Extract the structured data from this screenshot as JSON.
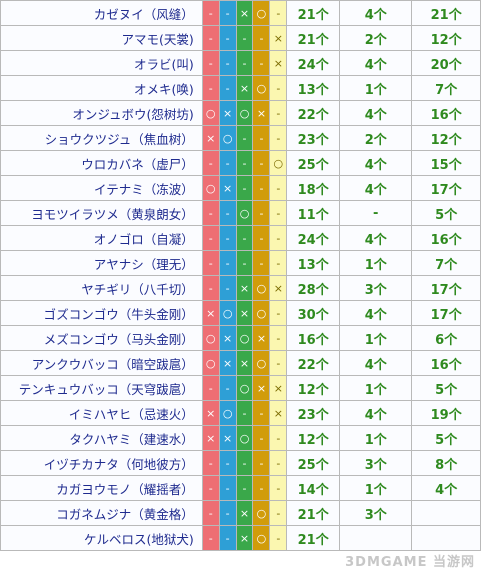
{
  "rows": [
    {
      "name": "カゼヌイ（风缝）",
      "marks": [
        "-",
        "-",
        "×",
        "○",
        "-"
      ],
      "n1": "21个",
      "n2": "4个",
      "n3": "21个"
    },
    {
      "name": "アマモ(天裳)",
      "marks": [
        "-",
        "-",
        "-",
        "-",
        "×"
      ],
      "n1": "21个",
      "n2": "2个",
      "n3": "12个"
    },
    {
      "name": "オラビ(叫)",
      "marks": [
        "-",
        "-",
        "-",
        "-",
        "×"
      ],
      "n1": "24个",
      "n2": "4个",
      "n3": "20个"
    },
    {
      "name": "オメキ(唤)",
      "marks": [
        "-",
        "-",
        "×",
        "○",
        "-"
      ],
      "n1": "13个",
      "n2": "1个",
      "n3": "7个"
    },
    {
      "name": "オンジュボウ(怨树坊)",
      "marks": [
        "○",
        "×",
        "○",
        "×",
        "-"
      ],
      "n1": "22个",
      "n2": "4个",
      "n3": "16个"
    },
    {
      "name": "ショウクツジュ（焦血树）",
      "marks": [
        "×",
        "○",
        "-",
        "-",
        "-"
      ],
      "n1": "23个",
      "n2": "2个",
      "n3": "12个"
    },
    {
      "name": "ウロカバネ（虚尸）",
      "marks": [
        "-",
        "-",
        "-",
        "-",
        "○"
      ],
      "n1": "25个",
      "n2": "4个",
      "n3": "15个"
    },
    {
      "name": "イテナミ（冻波）",
      "marks": [
        "○",
        "×",
        "-",
        "-",
        "-"
      ],
      "n1": "18个",
      "n2": "4个",
      "n3": "17个"
    },
    {
      "name": "ヨモツイラツメ（黄泉朗女）",
      "marks": [
        "-",
        "-",
        "○",
        "-",
        "-"
      ],
      "n1": "11个",
      "n2": "-",
      "n3": "5个"
    },
    {
      "name": "オノゴロ（自凝）",
      "marks": [
        "-",
        "-",
        "-",
        "-",
        "-"
      ],
      "n1": "24个",
      "n2": "4个",
      "n3": "16个"
    },
    {
      "name": "アヤナシ（理无）",
      "marks": [
        "-",
        "-",
        "-",
        "-",
        "-"
      ],
      "n1": "13个",
      "n2": "1个",
      "n3": "7个"
    },
    {
      "name": "ヤチギリ（八千切）",
      "marks": [
        "-",
        "-",
        "×",
        "○",
        "×"
      ],
      "n1": "28个",
      "n2": "3个",
      "n3": "17个"
    },
    {
      "name": "ゴズコンゴウ（牛头金刚）",
      "marks": [
        "×",
        "○",
        "×",
        "○",
        "-"
      ],
      "n1": "30个",
      "n2": "4个",
      "n3": "17个"
    },
    {
      "name": "メズコンゴウ（马头金刚）",
      "marks": [
        "○",
        "×",
        "○",
        "×",
        "-"
      ],
      "n1": "16个",
      "n2": "1个",
      "n3": "6个"
    },
    {
      "name": "アンクウバッコ（暗空跋扈）",
      "marks": [
        "○",
        "×",
        "×",
        "○",
        "-"
      ],
      "n1": "22个",
      "n2": "4个",
      "n3": "16个"
    },
    {
      "name": "テンキュウバッコ（天穹跋扈）",
      "marks": [
        "-",
        "-",
        "○",
        "×",
        "×"
      ],
      "n1": "12个",
      "n2": "1个",
      "n3": "5个"
    },
    {
      "name": "イミハヤヒ（忌速火）",
      "marks": [
        "×",
        "○",
        "-",
        "-",
        "×"
      ],
      "n1": "23个",
      "n2": "4个",
      "n3": "19个"
    },
    {
      "name": "タクハヤミ（建速水）",
      "marks": [
        "×",
        "×",
        "○",
        "-",
        "-"
      ],
      "n1": "12个",
      "n2": "1个",
      "n3": "5个"
    },
    {
      "name": "イヅチカナタ（何地彼方）",
      "marks": [
        "-",
        "-",
        "-",
        "-",
        "-"
      ],
      "n1": "25个",
      "n2": "3个",
      "n3": "8个"
    },
    {
      "name": "カガヨウモノ（耀摇者）",
      "marks": [
        "-",
        "-",
        "-",
        "-",
        "-"
      ],
      "n1": "14个",
      "n2": "1个",
      "n3": "4个"
    },
    {
      "name": "コガネムジナ（黄金格）",
      "marks": [
        "-",
        "-",
        "×",
        "○",
        "-"
      ],
      "n1": "21个",
      "n2": "3个",
      "n3": ""
    },
    {
      "name": "ケルベロス(地狱犬)",
      "marks": [
        "-",
        "-",
        "×",
        "○",
        "-"
      ],
      "n1": "21个",
      "n2": "",
      "n3": ""
    }
  ],
  "colors": {
    "col1": "#ee6e73",
    "col2": "#2e9fd6",
    "col3": "#3aa84a",
    "col4": "#d19c0b",
    "col5": "#fbf7b0",
    "number_green": "#2f8a1f",
    "name_blue": "#1f2b8f"
  },
  "watermark": "3DMGAME 当游网"
}
